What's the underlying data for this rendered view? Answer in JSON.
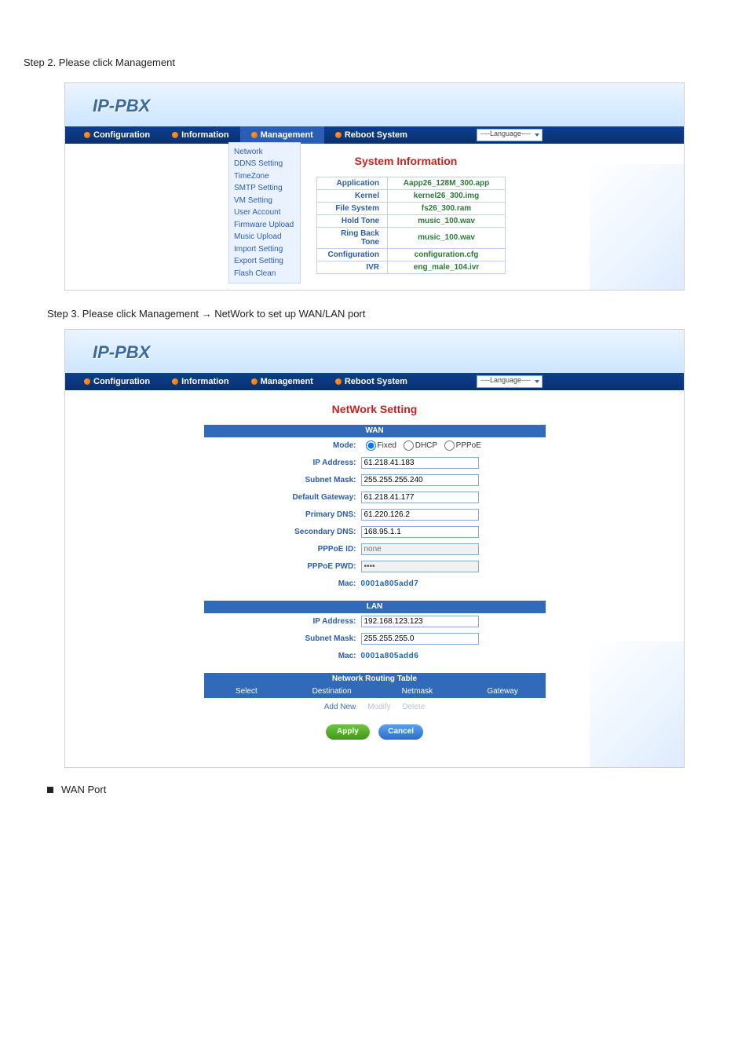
{
  "intro1": "Step 2. Please click Management ",
  "logo": "IP-PBX",
  "nav": {
    "configuration": "Configuration",
    "information": "Information",
    "management": "Management",
    "reboot": "Reboot System",
    "language": "----Language----"
  },
  "mgmtMenu": [
    "Network",
    "DDNS Setting",
    "TimeZone",
    "SMTP Setting",
    "VM Setting",
    "User Account",
    "Firmware Upload",
    "Music Upload",
    "Import Setting",
    "Export Setting",
    "Flash Clean"
  ],
  "sysInfoTitle": "System Information",
  "sysInfo": [
    {
      "k": "Application",
      "v": "Aapp26_128M_300.app"
    },
    {
      "k": "Kernel",
      "v": "kernel26_300.img"
    },
    {
      "k": "File System",
      "v": "fs26_300.ram"
    },
    {
      "k": "Hold Tone",
      "v": "music_100.wav"
    },
    {
      "k": "Ring Back Tone",
      "v": "music_100.wav"
    },
    {
      "k": "Configuration",
      "v": "configuration.cfg"
    },
    {
      "k": "IVR",
      "v": "eng_male_104.ivr"
    }
  ],
  "step3a": "Step 3. Please click Management ",
  "step3b": " NetWork to set up WAN/LAN port ",
  "networkTitle": "NetWork Setting",
  "wan": {
    "header": "WAN",
    "modeLabel": "Mode:",
    "modeFixed": "Fixed",
    "modeDhcp": "DHCP",
    "modePppoe": "PPPoE",
    "ipLabel": "IP Address:",
    "ip": "61.218.41.183",
    "maskLabel": "Subnet Mask:",
    "mask": "255.255.255.240",
    "gwLabel": "Default Gateway:",
    "gw": "61.218.41.177",
    "dns1Label": "Primary DNS:",
    "dns1": "61.220.126.2",
    "dns2Label": "Secondary DNS:",
    "dns2": "168.95.1.1",
    "pppoeIdLabel": "PPPoE ID:",
    "pppoeIdPh": "none",
    "pppoePwdLabel": "PPPoE PWD:",
    "pppoePwd": "••••",
    "macLabel": "Mac:",
    "mac": "0001a805add7"
  },
  "lan": {
    "header": "LAN",
    "ipLabel": "IP Address:",
    "ip": "192.168.123.123",
    "maskLabel": "Subnet Mask:",
    "mask": "255.255.255.0",
    "macLabel": "Mac:",
    "mac": "0001a805add6"
  },
  "routing": {
    "title": "Network Routing Table",
    "cols": [
      "Select",
      "Destination",
      "Netmask",
      "Gateway"
    ],
    "addNew": "Add New",
    "modify": "Modify",
    "del": "Delete"
  },
  "btnApply": "Apply",
  "btnCancel": "Cancel",
  "wanBullet": "WAN Port"
}
